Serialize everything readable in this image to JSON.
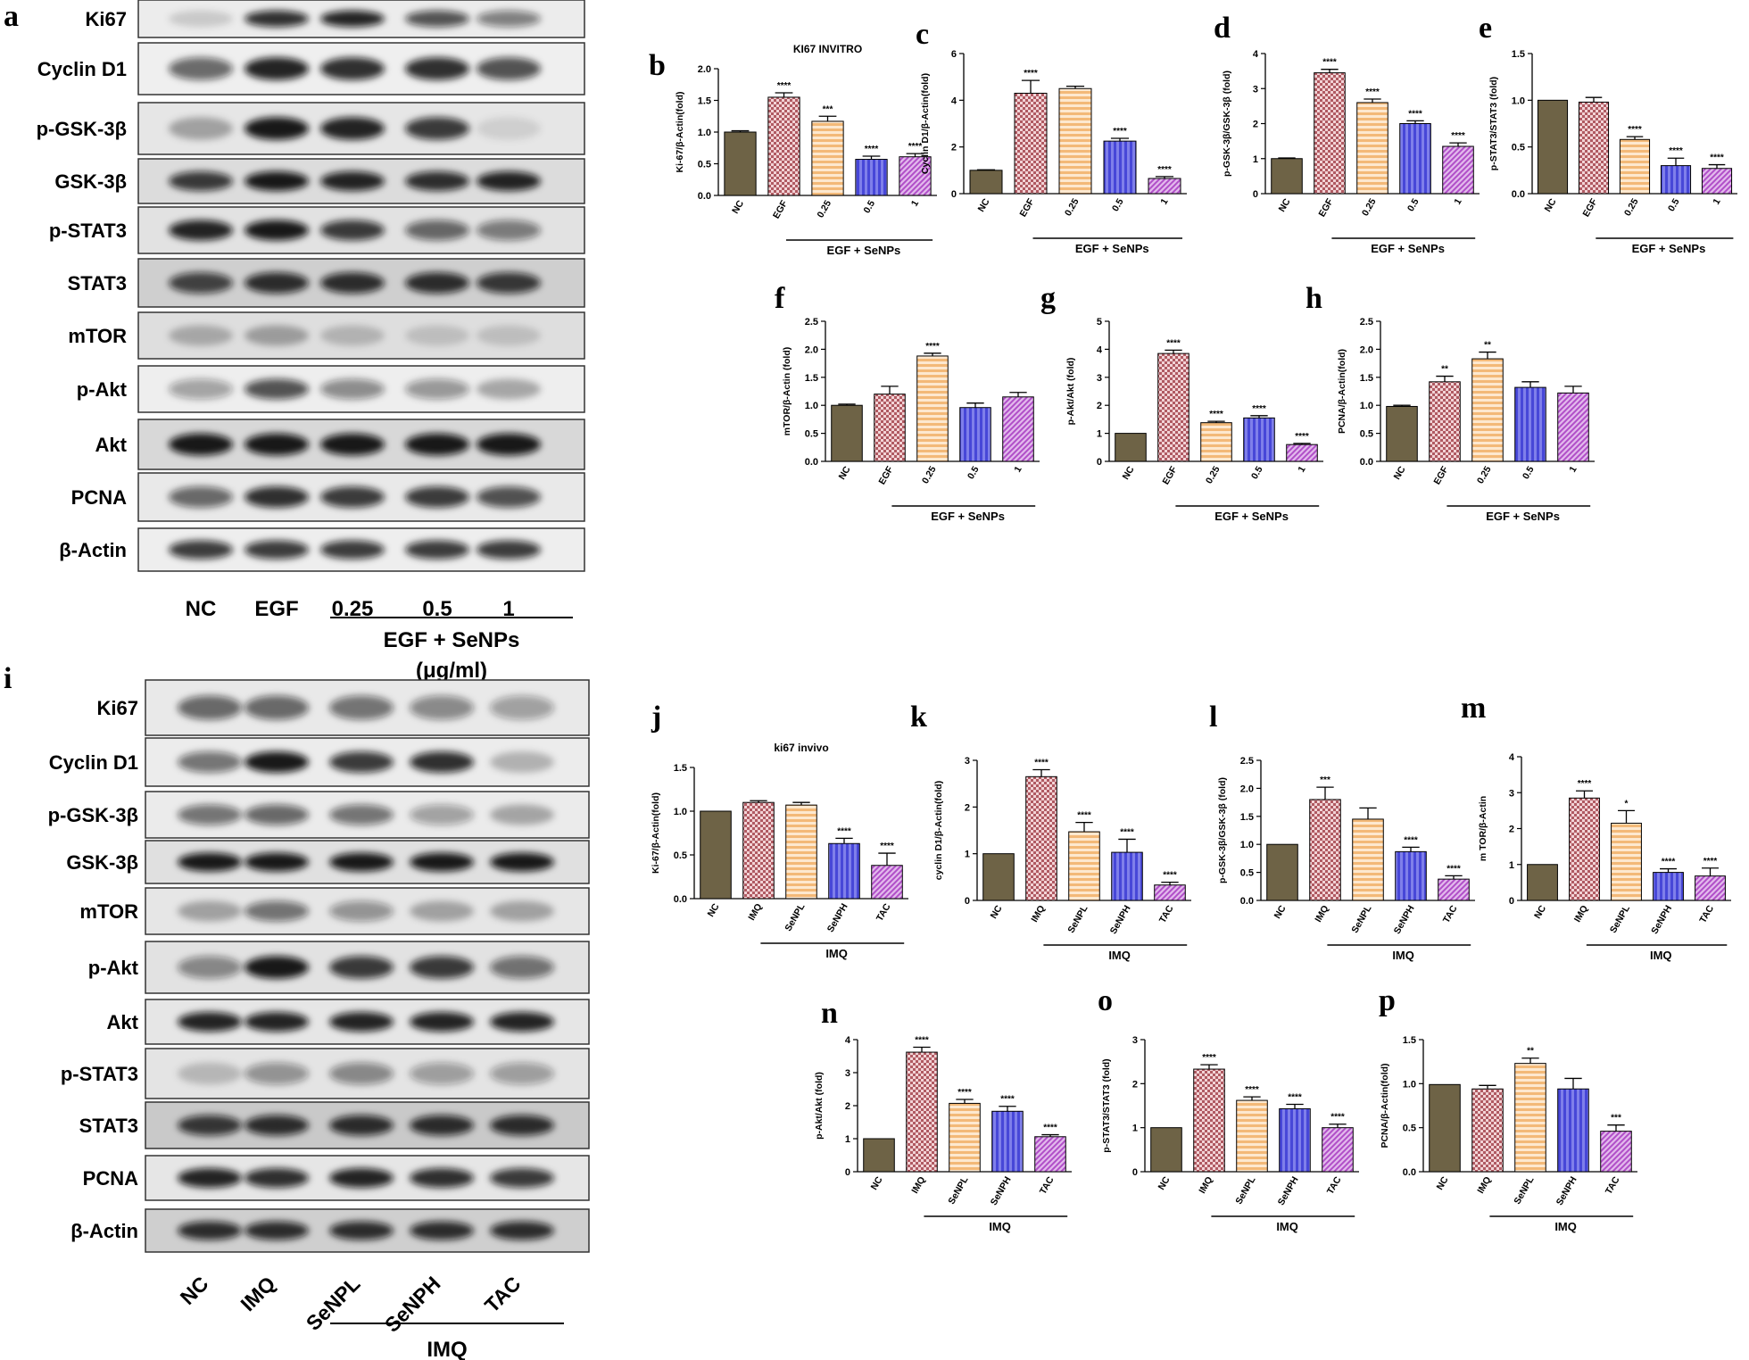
{
  "colors": {
    "NC": "#6e6346",
    "EGF": "#b05a62",
    "IMQ": "#b05a62",
    "low": "#f3b978",
    "mid": "#4747d8",
    "high": "#b04ec8"
  },
  "panel_letters": {
    "a": "a",
    "b": "b",
    "c": "c",
    "d": "d",
    "e": "e",
    "f": "f",
    "g": "g",
    "h": "h",
    "i": "i",
    "j": "j",
    "k": "k",
    "l": "l",
    "m": "m",
    "n": "n",
    "o": "o",
    "p": "p"
  },
  "blot_a": {
    "rows": [
      "Ki67",
      "Cyclin D1",
      "p-GSK-3β",
      "GSK-3β",
      "p-STAT3",
      "STAT3",
      "mTOR",
      "p-Akt",
      "Akt",
      "PCNA",
      "β-Actin"
    ],
    "lanes": [
      "NC",
      "EGF",
      "0.25",
      "0.5",
      "1"
    ],
    "treatment": "EGF + SeNPs",
    "unit": "(μg/ml)"
  },
  "blot_i": {
    "rows": [
      "Ki67",
      "Cyclin D1",
      "p-GSK-3β",
      "GSK-3β",
      "mTOR",
      "p-Akt",
      "Akt",
      "p-STAT3",
      "STAT3",
      "PCNA",
      "β-Actin"
    ],
    "lanes": [
      "NC",
      "IMQ",
      "SeNPL",
      "SeNPH",
      "TAC"
    ],
    "treatment": "IMQ"
  },
  "chart_data": [
    {
      "id": "b",
      "type": "bar",
      "title": "KI67 INVITRO",
      "categories": [
        "NC",
        "EGF",
        "0.25",
        "0.5",
        "1"
      ],
      "values": [
        1.0,
        1.55,
        1.17,
        0.57,
        0.61
      ],
      "errors": [
        0.02,
        0.07,
        0.08,
        0.05,
        0.05
      ],
      "sig": [
        "",
        "****",
        "***",
        "****",
        "****"
      ],
      "ylabel": "Ki-67/β-Actin(fold)",
      "ylim": [
        0,
        2.0
      ],
      "yticks": [
        "0.0",
        "0.5",
        "1.0",
        "1.5",
        "2.0"
      ],
      "group_label": "EGF + SeNPs"
    },
    {
      "id": "c",
      "type": "bar",
      "title": "",
      "categories": [
        "NC",
        "EGF",
        "0.25",
        "0.5",
        "1"
      ],
      "values": [
        1.0,
        4.3,
        4.5,
        2.25,
        0.65
      ],
      "errors": [
        0.02,
        0.55,
        0.1,
        0.12,
        0.08
      ],
      "sig": [
        "",
        "****",
        "",
        "****",
        "****"
      ],
      "ylabel": "Cyclin D1/β-Actin(fold)",
      "ylim": [
        0,
        6
      ],
      "yticks": [
        "0",
        "2",
        "4",
        "6"
      ],
      "group_label": "EGF + SeNPs"
    },
    {
      "id": "d",
      "type": "bar",
      "title": "",
      "categories": [
        "NC",
        "EGF",
        "0.25",
        "0.5",
        "1"
      ],
      "values": [
        1.0,
        3.45,
        2.6,
        2.0,
        1.35
      ],
      "errors": [
        0.02,
        0.1,
        0.1,
        0.08,
        0.1
      ],
      "sig": [
        "",
        "****",
        "****",
        "****",
        "****"
      ],
      "ylabel": "p-GSK-3β/GSK-3β (fold)",
      "ylim": [
        0,
        4
      ],
      "yticks": [
        "0",
        "1",
        "2",
        "3",
        "4"
      ],
      "group_label": "EGF + SeNPs"
    },
    {
      "id": "e",
      "type": "bar",
      "title": "",
      "categories": [
        "NC",
        "EGF",
        "0.25",
        "0.5",
        "1"
      ],
      "values": [
        1.0,
        0.98,
        0.58,
        0.3,
        0.27
      ],
      "errors": [
        0.0,
        0.05,
        0.03,
        0.08,
        0.04
      ],
      "sig": [
        "",
        "",
        "****",
        "****",
        "****"
      ],
      "ylabel": "p-STAT3/STAT3 (fold)",
      "ylim": [
        0,
        1.5
      ],
      "yticks": [
        "0.0",
        "0.5",
        "1.0",
        "1.5"
      ],
      "group_label": "EGF + SeNPs"
    },
    {
      "id": "f",
      "type": "bar",
      "title": "",
      "categories": [
        "NC",
        "EGF",
        "0.25",
        "0.5",
        "1"
      ],
      "values": [
        1.0,
        1.2,
        1.88,
        0.96,
        1.15
      ],
      "errors": [
        0.02,
        0.14,
        0.05,
        0.08,
        0.08
      ],
      "sig": [
        "",
        "",
        "****",
        "",
        ""
      ],
      "ylabel": "mTOR/β-Actin (fold)",
      "ylim": [
        0,
        2.5
      ],
      "yticks": [
        "0.0",
        "0.5",
        "1.0",
        "1.5",
        "2.0",
        "2.5"
      ],
      "group_label": "EGF + SeNPs"
    },
    {
      "id": "g",
      "type": "bar",
      "title": "",
      "categories": [
        "NC",
        "EGF",
        "0.25",
        "0.5",
        "1"
      ],
      "values": [
        1.0,
        3.85,
        1.38,
        1.55,
        0.6
      ],
      "errors": [
        0.0,
        0.12,
        0.05,
        0.08,
        0.04
      ],
      "sig": [
        "",
        "****",
        "****",
        "****",
        "****"
      ],
      "ylabel": "p-Akt/Akt (fold)",
      "ylim": [
        0,
        5
      ],
      "yticks": [
        "0",
        "1",
        "2",
        "3",
        "4",
        "5"
      ],
      "group_label": "EGF + SeNPs"
    },
    {
      "id": "h",
      "type": "bar",
      "title": "",
      "categories": [
        "NC",
        "EGF",
        "0.25",
        "0.5",
        "1"
      ],
      "values": [
        0.98,
        1.42,
        1.83,
        1.32,
        1.22
      ],
      "errors": [
        0.02,
        0.1,
        0.12,
        0.1,
        0.12
      ],
      "sig": [
        "",
        "**",
        "**",
        "",
        ""
      ],
      "ylabel": "PCNA/β-Actin(fold)",
      "ylim": [
        0,
        2.5
      ],
      "yticks": [
        "0.0",
        "0.5",
        "1.0",
        "1.5",
        "2.0",
        "2.5"
      ],
      "group_label": "EGF + SeNPs"
    },
    {
      "id": "j",
      "type": "bar",
      "title": "ki67 invivo",
      "categories": [
        "NC",
        "IMQ",
        "SeNPL",
        "SeNPH",
        "TAC"
      ],
      "values": [
        1.0,
        1.1,
        1.07,
        0.63,
        0.38
      ],
      "errors": [
        0.0,
        0.02,
        0.03,
        0.06,
        0.14
      ],
      "sig": [
        "",
        "",
        "",
        "****",
        "****"
      ],
      "ylabel": "Ki-67/β-Actin(fold)",
      "ylim": [
        0,
        1.5
      ],
      "yticks": [
        "0.0",
        "0.5",
        "1.0",
        "1.5"
      ],
      "group_label": "IMQ"
    },
    {
      "id": "k",
      "type": "bar",
      "title": "",
      "categories": [
        "NC",
        "IMQ",
        "SeNPL",
        "SeNPH",
        "TAC"
      ],
      "values": [
        1.0,
        2.65,
        1.47,
        1.03,
        0.33
      ],
      "errors": [
        0.0,
        0.15,
        0.2,
        0.28,
        0.06
      ],
      "sig": [
        "",
        "****",
        "****",
        "****",
        "****"
      ],
      "ylabel": "cyclin D1/β-Actin(fold)",
      "ylim": [
        0,
        3
      ],
      "yticks": [
        "0",
        "1",
        "2",
        "3"
      ],
      "group_label": "IMQ"
    },
    {
      "id": "l",
      "type": "bar",
      "title": "",
      "categories": [
        "NC",
        "IMQ",
        "SeNPL",
        "SeNPH",
        "TAC"
      ],
      "values": [
        1.0,
        1.8,
        1.45,
        0.87,
        0.38
      ],
      "errors": [
        0.0,
        0.22,
        0.2,
        0.08,
        0.06
      ],
      "sig": [
        "",
        "***",
        "",
        "****",
        "****"
      ],
      "ylabel": "p-GSK-3β/GSK-3β (fold)",
      "ylim": [
        0,
        2.5
      ],
      "yticks": [
        "0.0",
        "0.5",
        "1.0",
        "1.5",
        "2.0",
        "2.5"
      ],
      "group_label": "IMQ"
    },
    {
      "id": "m",
      "type": "bar",
      "title": "",
      "categories": [
        "NC",
        "IMQ",
        "SeNPL",
        "SeNPH",
        "TAC"
      ],
      "values": [
        1.0,
        2.85,
        2.15,
        0.78,
        0.68
      ],
      "errors": [
        0.0,
        0.2,
        0.35,
        0.1,
        0.22
      ],
      "sig": [
        "",
        "****",
        "*",
        "****",
        "****"
      ],
      "ylabel": "m TOR/β-Actin",
      "ylim": [
        0,
        4
      ],
      "yticks": [
        "0",
        "1",
        "2",
        "3",
        "4"
      ],
      "group_label": "IMQ"
    },
    {
      "id": "n",
      "type": "bar",
      "title": "",
      "categories": [
        "NC",
        "IMQ",
        "SeNPL",
        "SeNPH",
        "TAC"
      ],
      "values": [
        1.0,
        3.62,
        2.07,
        1.83,
        1.06
      ],
      "errors": [
        0.0,
        0.15,
        0.12,
        0.15,
        0.06
      ],
      "sig": [
        "",
        "****",
        "****",
        "****",
        "****"
      ],
      "ylabel": "p-Akt/Akt (fold)",
      "ylim": [
        0,
        4
      ],
      "yticks": [
        "0",
        "1",
        "2",
        "3",
        "4"
      ],
      "group_label": "IMQ"
    },
    {
      "id": "o",
      "type": "bar",
      "title": "",
      "categories": [
        "NC",
        "IMQ",
        "SeNPL",
        "SeNPH",
        "TAC"
      ],
      "values": [
        1.0,
        2.33,
        1.62,
        1.43,
        1.0
      ],
      "errors": [
        0.0,
        0.1,
        0.08,
        0.1,
        0.08
      ],
      "sig": [
        "",
        "****",
        "****",
        "****",
        "****"
      ],
      "ylabel": "p-STAT3/STAT3 (fold)",
      "ylim": [
        0,
        3
      ],
      "yticks": [
        "0",
        "1",
        "2",
        "3"
      ],
      "group_label": "IMQ"
    },
    {
      "id": "p",
      "type": "bar",
      "title": "",
      "categories": [
        "NC",
        "IMQ",
        "SeNPL",
        "SeNPH",
        "TAC"
      ],
      "values": [
        0.99,
        0.94,
        1.23,
        0.94,
        0.46
      ],
      "errors": [
        0.0,
        0.04,
        0.06,
        0.12,
        0.07
      ],
      "sig": [
        "",
        "",
        "**",
        "",
        "***"
      ],
      "ylabel": "PCNA/β-Actin(fold)",
      "ylim": [
        0,
        1.5
      ],
      "yticks": [
        "0.0",
        "0.5",
        "1.0",
        "1.5"
      ],
      "group_label": "IMQ"
    }
  ]
}
